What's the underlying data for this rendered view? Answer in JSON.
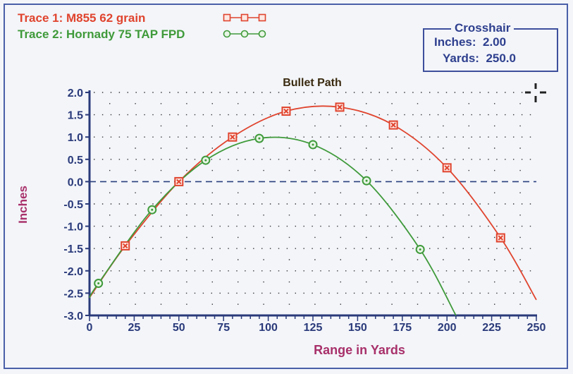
{
  "legend": {
    "trace1": "Trace 1:  M855 62 grain",
    "trace2": "Trace 2:  Hornady 75 TAP FPD"
  },
  "crosshair": {
    "title": "Crosshair",
    "inches_label": "Inches:",
    "inches_value": "2.00",
    "yards_label": "Yards:",
    "yards_value": "250.0"
  },
  "chart_data": {
    "type": "line",
    "title": "Bullet Path",
    "xlabel": "Range in Yards",
    "ylabel": "Inches",
    "xlim": [
      0,
      250
    ],
    "ylim": [
      -3.0,
      2.0
    ],
    "xticks": [
      0,
      25,
      50,
      75,
      100,
      125,
      150,
      175,
      200,
      225,
      250
    ],
    "yticks": [
      "2.0",
      "1.5",
      "1.0",
      "0.5",
      "0.0",
      "-0.5",
      "-1.0",
      "-1.5",
      "-2.0",
      "-2.5",
      "-3.0"
    ],
    "grid": "dotted",
    "reference_line": 0,
    "series": [
      {
        "name": "Trace 1:  M855 62 grain",
        "color": "#e0442e",
        "marker": "square-x",
        "x": [
          20,
          50,
          80,
          110,
          140,
          170,
          200,
          230
        ],
        "y": [
          -1.44,
          0,
          1.0,
          1.58,
          1.67,
          1.27,
          0.31,
          -1.26
        ],
        "line_start": [
          0,
          -2.6
        ],
        "line_end": [
          250,
          -2.65
        ]
      },
      {
        "name": "Trace 2:  Hornady 75 TAP FPD",
        "color": "#3f9a3a",
        "marker": "circle-dot",
        "x": [
          5,
          35,
          65,
          95,
          125,
          155,
          185
        ],
        "y": [
          -2.28,
          -0.63,
          0.48,
          0.97,
          0.83,
          0.02,
          -1.52
        ],
        "line_start": [
          0,
          -2.6
        ],
        "line_end": [
          205,
          -3.0
        ]
      }
    ]
  }
}
